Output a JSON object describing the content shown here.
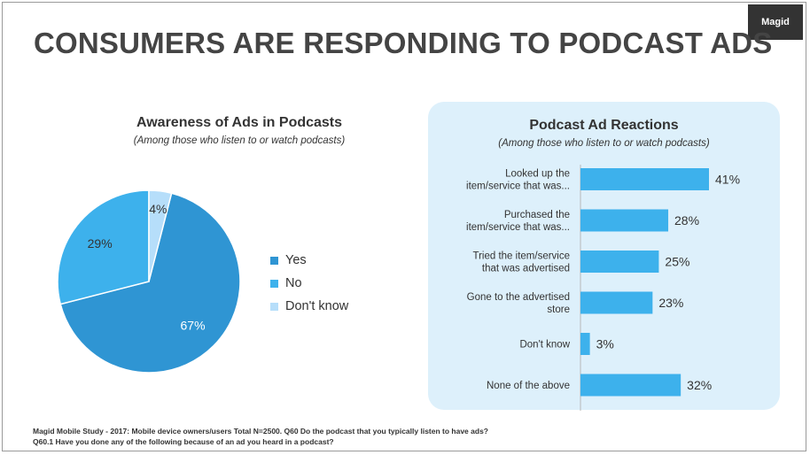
{
  "logo_text": "Magid",
  "page_title": "CONSUMERS ARE RESPONDING TO PODCAST ADS",
  "footnote": [
    "Magid Mobile Study - 2017: Mobile device owners/users Total N=2500. Q60 Do the podcast that you typically listen to have ads?",
    "Q60.1 Have you done any of the following because of an ad you heard in a podcast?"
  ],
  "colors": {
    "yes": "#2f95d3",
    "no": "#3db1ec",
    "dont_know": "#b6defa",
    "bar": "#3db1ec",
    "panel": "#ddf0fb"
  },
  "chart_data": [
    {
      "type": "pie",
      "title": "Awareness of Ads in Podcasts",
      "subtitle": "(Among those who listen to or watch podcasts)",
      "legend_position": "right",
      "slices": [
        {
          "label": "Yes",
          "value": 67,
          "display": "67%",
          "color": "#2f95d3"
        },
        {
          "label": "No",
          "value": 29,
          "display": "29%",
          "color": "#3db1ec"
        },
        {
          "label": "Don't know",
          "value": 4,
          "display": "4%",
          "color": "#b6defa"
        }
      ]
    },
    {
      "type": "bar",
      "orientation": "horizontal",
      "title": "Podcast Ad Reactions",
      "subtitle": "(Among those who listen to or watch podcasts)",
      "xlim": [
        0,
        45
      ],
      "bars": [
        {
          "label": [
            "Looked up the",
            "item/service that was..."
          ],
          "value": 41,
          "display": "41%"
        },
        {
          "label": [
            "Purchased the",
            "item/service that was..."
          ],
          "value": 28,
          "display": "28%"
        },
        {
          "label": [
            "Tried the item/service",
            "that was advertised"
          ],
          "value": 25,
          "display": "25%"
        },
        {
          "label": [
            "Gone to the advertised",
            "store"
          ],
          "value": 23,
          "display": "23%"
        },
        {
          "label": [
            "Don't know"
          ],
          "value": 3,
          "display": "3%"
        },
        {
          "label": [
            "None of the above"
          ],
          "value": 32,
          "display": "32%"
        }
      ]
    }
  ]
}
